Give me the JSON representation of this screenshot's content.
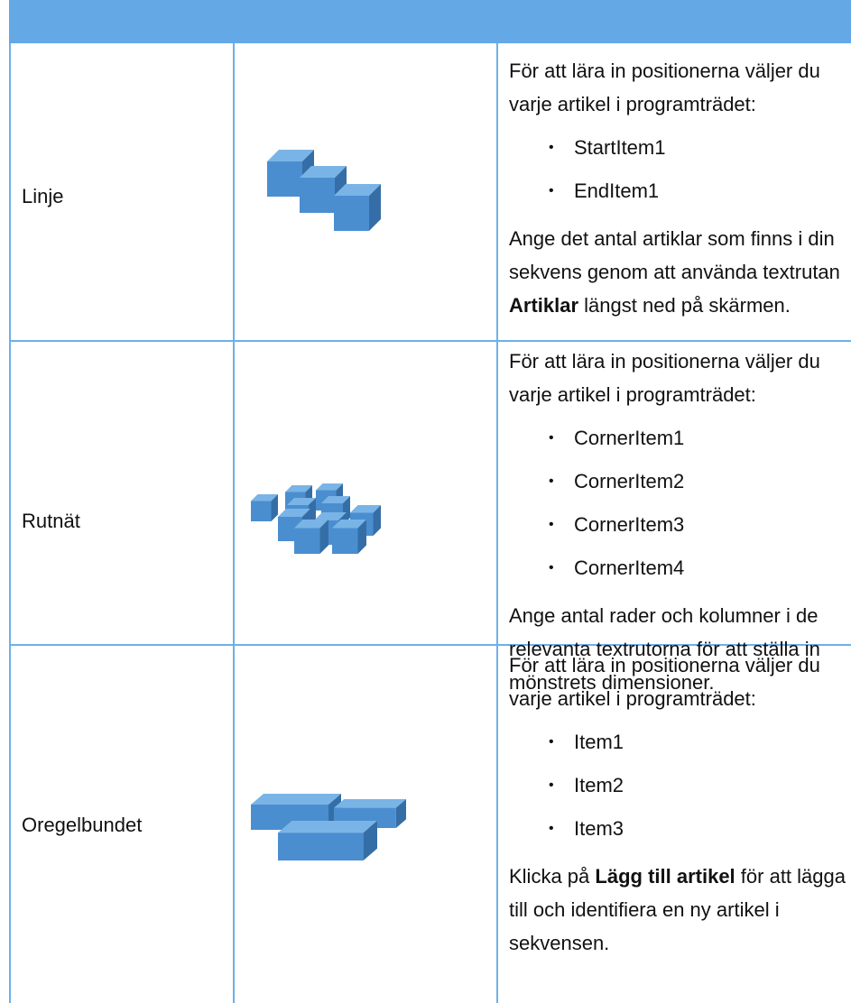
{
  "table": {
    "rows": [
      {
        "label": "Linje",
        "intro": "För att lära in positionerna väljer du varje artikel i programträdet:",
        "items": [
          "StartItem1",
          "EndItem1"
        ],
        "note": {
          "before": "Ange det antal artiklar som finns i din sekvens genom att använda textrutan",
          "bold": "Artiklar",
          "after": "längst ned på skärmen."
        }
      },
      {
        "label": "Rutnät",
        "intro": "För att lära in positionerna väljer du varje artikel i programträdet:",
        "items": [
          "CornerItem1",
          "CornerItem2",
          "CornerItem3",
          "CornerItem4"
        ],
        "note": {
          "before": "Ange antal rader och kolumner i de relevanta textrutorna för att ställa in mönstrets dimensioner."
        }
      },
      {
        "label": "Oregelbundet",
        "intro": "För att lära in positionerna väljer du varje artikel i programträdet:",
        "items": [
          "Item1",
          "Item2",
          "Item3"
        ],
        "note": {
          "before": "Klicka på",
          "bold": "Lägg till artikel",
          "after": "för att lägga till och identifiera en ny artikel i sekvensen."
        }
      }
    ]
  }
}
